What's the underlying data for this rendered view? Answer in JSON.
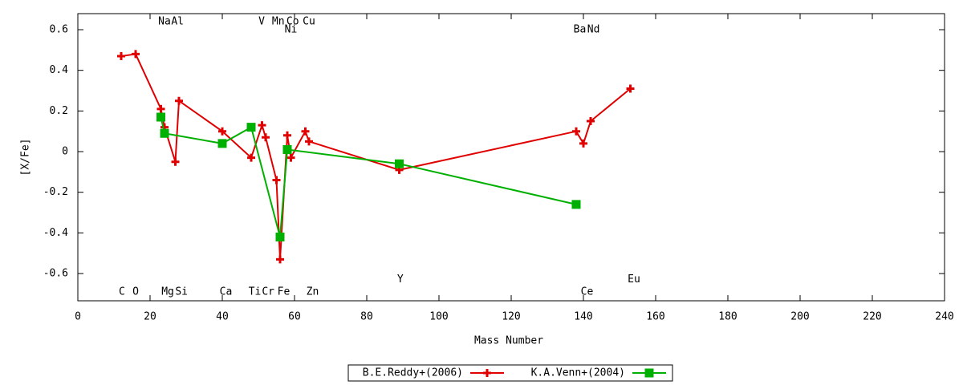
{
  "chart_data": {
    "type": "line",
    "xlabel": "Mass Number",
    "ylabel": "[X/Fe]",
    "xlim": [
      0,
      240
    ],
    "xticks": [
      0,
      20,
      40,
      60,
      80,
      100,
      120,
      140,
      160,
      180,
      200,
      220,
      240
    ],
    "ylim": [
      -0.734,
      0.679
    ],
    "yticks": [
      -0.6,
      -0.4,
      -0.2,
      0,
      0.2,
      0.4,
      0.6
    ],
    "legend": "bottom",
    "series": [
      {
        "name": "B.E.Reddy+(2006)",
        "color": "#e00000",
        "marker": "plus",
        "x": [
          12,
          16,
          23,
          24,
          27,
          28,
          40,
          48,
          51,
          52,
          55,
          56,
          58,
          59,
          63,
          64,
          89,
          138,
          140,
          142,
          153
        ],
        "values": [
          0.47,
          0.48,
          0.21,
          0.12,
          -0.05,
          0.25,
          0.1,
          -0.03,
          0.13,
          0.07,
          -0.14,
          -0.53,
          0.08,
          -0.03,
          0.1,
          0.05,
          -0.09,
          0.1,
          0.04,
          0.15,
          0.31
        ]
      },
      {
        "name": "K.A.Venn+(2004)",
        "color": "#00b000",
        "marker": "cross",
        "x": [
          23,
          24,
          40,
          48,
          56,
          58,
          89,
          138
        ],
        "values": [
          0.17,
          0.09,
          0.04,
          0.12,
          -0.42,
          0.01,
          -0.06,
          -0.26
        ]
      }
    ],
    "annotations": [
      {
        "text": "Na",
        "x": 24,
        "y": 0.64
      },
      {
        "text": "Al",
        "x": 27.6,
        "y": 0.64
      },
      {
        "text": "V",
        "x": 50.9,
        "y": 0.64
      },
      {
        "text": "Mn",
        "x": 55.5,
        "y": 0.64
      },
      {
        "text": "Co",
        "x": 59.5,
        "y": 0.64
      },
      {
        "text": "Cu",
        "x": 64,
        "y": 0.64
      },
      {
        "text": "Ni",
        "x": 59,
        "y": 0.6
      },
      {
        "text": "Ba",
        "x": 139,
        "y": 0.6
      },
      {
        "text": "Nd",
        "x": 142.8,
        "y": 0.6
      },
      {
        "text": "C",
        "x": 12.2,
        "y": -0.69
      },
      {
        "text": "O",
        "x": 16,
        "y": -0.69
      },
      {
        "text": "Mg",
        "x": 24.9,
        "y": -0.69
      },
      {
        "text": "Si",
        "x": 28.7,
        "y": -0.69
      },
      {
        "text": "Ca",
        "x": 41,
        "y": -0.69
      },
      {
        "text": "Ti",
        "x": 49,
        "y": -0.69
      },
      {
        "text": "Cr",
        "x": 52.7,
        "y": -0.69
      },
      {
        "text": "Fe",
        "x": 57,
        "y": -0.69
      },
      {
        "text": "Zn",
        "x": 65,
        "y": -0.69
      },
      {
        "text": "Ce",
        "x": 141,
        "y": -0.69
      },
      {
        "text": "Y",
        "x": 89.3,
        "y": -0.63
      },
      {
        "text": "Eu",
        "x": 154,
        "y": -0.63
      }
    ]
  }
}
